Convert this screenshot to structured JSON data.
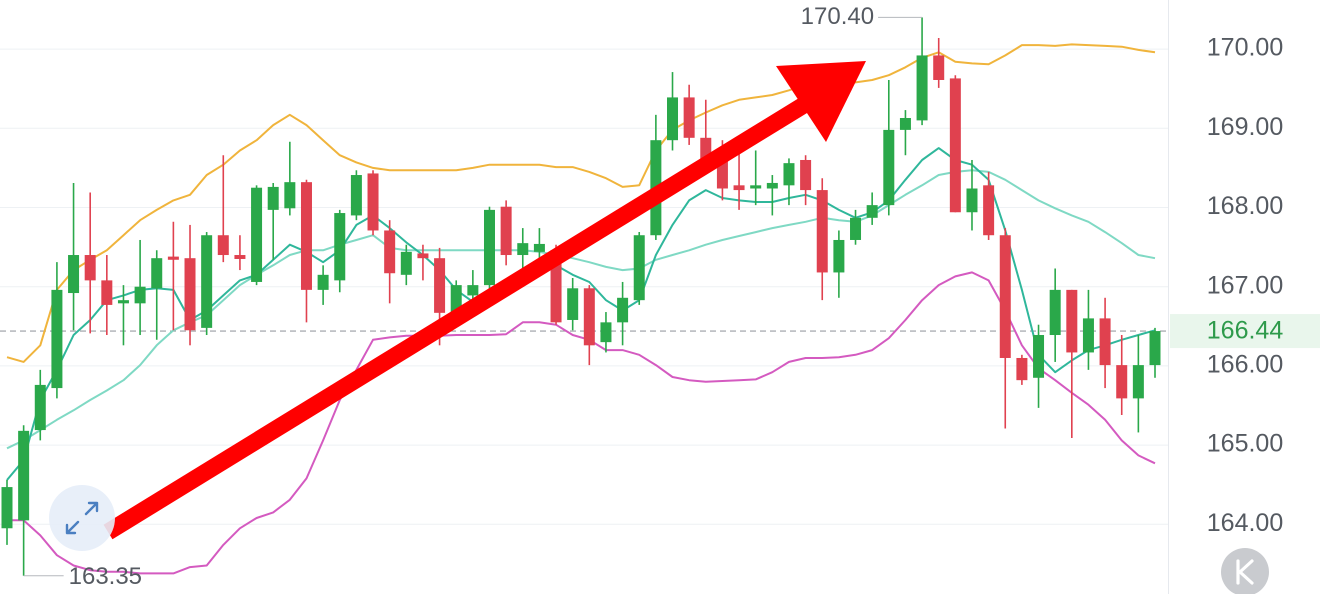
{
  "chart_data": {
    "type": "candlestick",
    "up_color": "#2aa84a",
    "down_color": "#e0414f",
    "ylim": [
      163.12,
      170.62
    ],
    "yticks": [
      {
        "value": 164,
        "label": "164.00"
      },
      {
        "value": 165,
        "label": "165.00"
      },
      {
        "value": 166,
        "label": "166.00"
      },
      {
        "value": 167,
        "label": "167.00"
      },
      {
        "value": 168,
        "label": "168.00"
      },
      {
        "value": 169,
        "label": "169.00"
      },
      {
        "value": 170,
        "label": "170.00"
      }
    ],
    "grid": true,
    "max_label": {
      "value": 170.4,
      "label": "170.40"
    },
    "min_label": 163.35,
    "last_price": 166.44,
    "candles": {
      "open": [
        163.95,
        164.05,
        165.19,
        165.72,
        166.92,
        167.4,
        167.08,
        166.79,
        166.79,
        166.98,
        167.38,
        167.36,
        166.48,
        167.65,
        167.4,
        167.06,
        167.97,
        167.99,
        168.32,
        166.96,
        167.08,
        167.9,
        168.43,
        167.71,
        167.15,
        167.42,
        167.36,
        166.68,
        166.89,
        167.02,
        168.01,
        167.4,
        167.44,
        167.46,
        166.58,
        166.98,
        166.3,
        166.55,
        166.83,
        167.65,
        168.85,
        169.39,
        168.88,
        168.66,
        168.28,
        168.24,
        168.24,
        168.28,
        168.6,
        168.22,
        167.18,
        167.59,
        167.87,
        168.03,
        168.98,
        169.1,
        169.92,
        169.63,
        167.94,
        168.28,
        167.65,
        166.1,
        165.85,
        166.39,
        166.96,
        166.17,
        166.6,
        166.01,
        165.59,
        166.01
      ],
      "high": [
        164.56,
        165.25,
        165.95,
        167.31,
        168.31,
        168.19,
        167.4,
        167.02,
        167.59,
        167.46,
        167.82,
        167.78,
        167.69,
        168.66,
        167.65,
        168.28,
        168.31,
        168.83,
        168.35,
        167.27,
        167.97,
        168.47,
        168.47,
        167.84,
        167.53,
        167.53,
        167.49,
        167.08,
        167.21,
        168.01,
        168.09,
        167.74,
        167.74,
        167.53,
        167.11,
        167.02,
        166.68,
        167.06,
        167.69,
        169.17,
        169.71,
        169.55,
        169.36,
        168.85,
        168.75,
        168.72,
        168.41,
        168.62,
        168.66,
        168.37,
        167.71,
        167.97,
        168.19,
        169.61,
        169.23,
        170.4,
        170.14,
        169.67,
        168.6,
        168.45,
        167.74,
        166.14,
        166.52,
        167.23,
        166.96,
        166.96,
        166.86,
        166.39,
        166.39,
        166.48
      ],
      "low": [
        163.74,
        163.35,
        165.06,
        165.59,
        166.45,
        166.41,
        166.39,
        166.26,
        166.39,
        166.33,
        166.45,
        166.26,
        166.39,
        167.31,
        167.21,
        167.02,
        167.34,
        167.9,
        166.55,
        166.77,
        166.93,
        167.84,
        167.65,
        166.79,
        167.02,
        167.08,
        166.26,
        166.52,
        166.64,
        166.96,
        167.27,
        167.15,
        167.15,
        166.52,
        166.45,
        166.01,
        166.17,
        166.26,
        166.77,
        167.59,
        168.72,
        168.79,
        168.54,
        168.09,
        167.97,
        168.03,
        167.9,
        168.03,
        168.03,
        166.83,
        166.86,
        167.53,
        167.78,
        167.9,
        168.66,
        169.04,
        169.51,
        167.94,
        167.71,
        167.59,
        165.21,
        165.76,
        165.47,
        166.05,
        165.09,
        165.95,
        165.72,
        165.38,
        165.16,
        165.85
      ],
      "close": [
        164.47,
        165.18,
        165.76,
        166.96,
        167.4,
        167.08,
        166.77,
        166.83,
        167.0,
        167.36,
        167.34,
        166.45,
        167.65,
        167.4,
        167.35,
        168.25,
        168.26,
        168.32,
        166.96,
        167.15,
        167.93,
        168.41,
        167.71,
        167.17,
        167.44,
        167.36,
        166.67,
        167.02,
        167.02,
        167.97,
        167.4,
        167.55,
        167.54,
        166.55,
        166.98,
        166.26,
        166.55,
        166.86,
        167.65,
        168.85,
        169.39,
        168.88,
        168.6,
        168.24,
        168.22,
        168.28,
        168.31,
        168.56,
        168.22,
        167.18,
        167.59,
        167.87,
        168.03,
        168.98,
        169.13,
        169.92,
        169.61,
        167.94,
        168.24,
        167.65,
        166.1,
        165.82,
        166.39,
        166.96,
        166.17,
        166.6,
        166.01,
        165.59,
        166.01,
        166.44
      ]
    },
    "series": [
      {
        "color": "#f0b43c",
        "values": [
          166.11,
          166.05,
          166.26,
          166.96,
          167.21,
          167.34,
          167.46,
          167.65,
          167.84,
          167.97,
          168.09,
          168.16,
          168.41,
          168.54,
          168.72,
          168.85,
          169.04,
          169.17,
          169.04,
          168.85,
          168.66,
          168.57,
          168.5,
          168.47,
          168.47,
          168.47,
          168.47,
          168.47,
          168.5,
          168.54,
          168.54,
          168.54,
          168.54,
          168.51,
          168.51,
          168.45,
          168.37,
          168.26,
          168.28,
          168.72,
          168.98,
          169.1,
          169.2,
          169.29,
          169.36,
          169.39,
          169.42,
          169.48,
          169.55,
          169.55,
          169.55,
          169.58,
          169.61,
          169.67,
          169.77,
          169.89,
          169.96,
          169.84,
          169.82,
          169.81,
          169.92,
          170.05,
          170.05,
          170.04,
          170.06,
          170.05,
          170.04,
          170.03,
          169.99,
          169.96
        ]
      },
      {
        "color": "#7fd9c4",
        "values": [
          164.96,
          165.06,
          165.19,
          165.32,
          165.44,
          165.57,
          165.69,
          165.82,
          166.01,
          166.26,
          166.45,
          166.55,
          166.64,
          166.83,
          167.02,
          167.15,
          167.27,
          167.4,
          167.46,
          167.46,
          167.53,
          167.59,
          167.65,
          167.49,
          167.46,
          167.46,
          167.46,
          167.46,
          167.46,
          167.46,
          167.46,
          167.46,
          167.44,
          167.4,
          167.36,
          167.31,
          167.25,
          167.21,
          167.23,
          167.34,
          167.4,
          167.46,
          167.53,
          167.59,
          167.64,
          167.69,
          167.74,
          167.78,
          167.82,
          167.87,
          167.84,
          167.82,
          167.9,
          168.03,
          168.16,
          168.28,
          168.41,
          168.45,
          168.47,
          168.45,
          168.35,
          168.22,
          168.09,
          167.99,
          167.9,
          167.82,
          167.69,
          167.55,
          167.4,
          167.36
        ]
      },
      {
        "color": "#d45ac0",
        "values": [
          164.05,
          164.05,
          163.86,
          163.61,
          163.48,
          163.42,
          163.4,
          163.4,
          163.38,
          163.38,
          163.38,
          163.46,
          163.48,
          163.74,
          163.95,
          164.08,
          164.15,
          164.31,
          164.58,
          165.06,
          165.57,
          165.95,
          166.33,
          166.36,
          166.38,
          166.38,
          166.38,
          166.39,
          166.39,
          166.39,
          166.4,
          166.55,
          166.55,
          166.52,
          166.39,
          166.33,
          166.2,
          166.2,
          166.14,
          166.01,
          165.86,
          165.82,
          165.8,
          165.81,
          165.82,
          165.83,
          165.92,
          166.05,
          166.1,
          166.1,
          166.11,
          166.14,
          166.2,
          166.35,
          166.58,
          166.83,
          167.02,
          167.13,
          167.18,
          167.08,
          166.7,
          166.26,
          165.97,
          165.82,
          165.66,
          165.51,
          165.32,
          165.06,
          164.87,
          164.77
        ]
      },
      {
        "color": "#2fb79b",
        "values": [
          164.56,
          164.81,
          165.57,
          165.95,
          166.39,
          166.58,
          166.83,
          166.89,
          166.96,
          166.98,
          166.96,
          166.58,
          166.7,
          166.89,
          167.08,
          167.15,
          167.34,
          167.53,
          167.44,
          167.31,
          167.46,
          167.78,
          167.9,
          167.74,
          167.56,
          167.4,
          167.21,
          166.96,
          166.81,
          166.83,
          167.02,
          167.15,
          167.27,
          167.27,
          167.15,
          167.06,
          166.83,
          166.7,
          166.83,
          167.4,
          167.78,
          168.09,
          168.22,
          168.12,
          168.09,
          168.07,
          168.07,
          168.12,
          168.16,
          168.09,
          167.97,
          167.87,
          167.94,
          168.09,
          168.35,
          168.6,
          168.75,
          168.6,
          168.54,
          168.35,
          167.71,
          166.96,
          166.14,
          165.92,
          166.07,
          166.2,
          166.26,
          166.33,
          166.39,
          166.45
        ]
      }
    ]
  }
}
